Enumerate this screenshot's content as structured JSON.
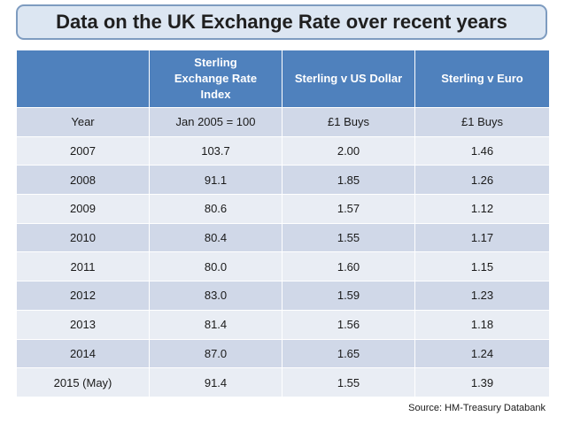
{
  "title": "Data on the UK Exchange Rate over recent years",
  "table": {
    "headers": [
      "",
      "Sterling Exchange Rate Index",
      "Sterling v US Dollar",
      "Sterling v Euro"
    ],
    "rows": [
      [
        "Year",
        "Jan 2005 = 100",
        "£1 Buys",
        "£1 Buys"
      ],
      [
        "2007",
        "103.7",
        "2.00",
        "1.46"
      ],
      [
        "2008",
        "91.1",
        "1.85",
        "1.26"
      ],
      [
        "2009",
        "80.6",
        "1.57",
        "1.12"
      ],
      [
        "2010",
        "80.4",
        "1.55",
        "1.17"
      ],
      [
        "2011",
        "80.0",
        "1.60",
        "1.15"
      ],
      [
        "2012",
        "83.0",
        "1.59",
        "1.23"
      ],
      [
        "2013",
        "81.4",
        "1.56",
        "1.18"
      ],
      [
        "2014",
        "87.0",
        "1.65",
        "1.24"
      ],
      [
        "2015 (May)",
        "91.4",
        "1.55",
        "1.39"
      ]
    ]
  },
  "source": "Source: HM-Treasury Databank"
}
